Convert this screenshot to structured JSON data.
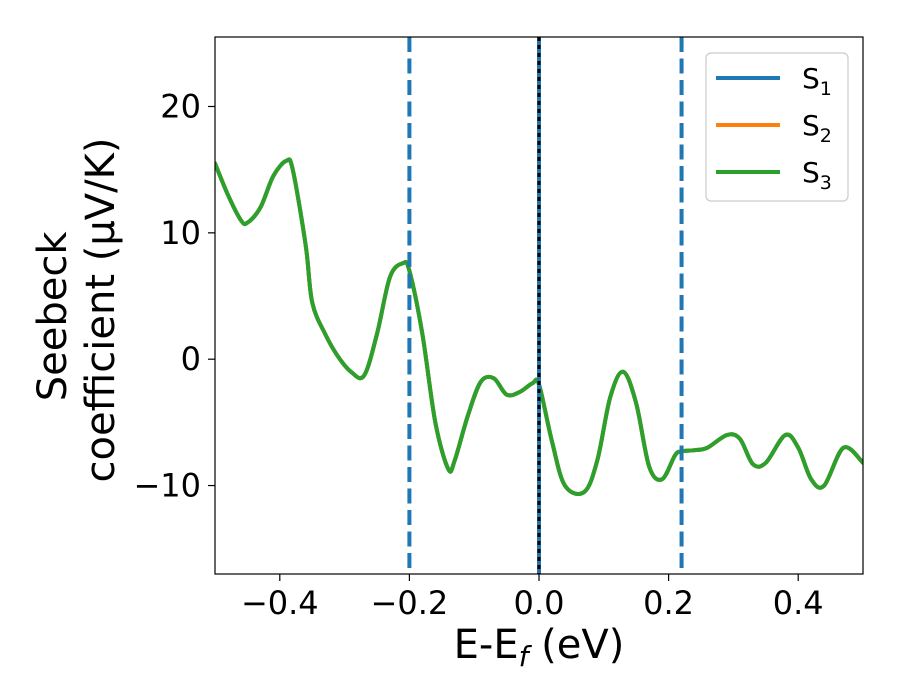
{
  "chart_data": {
    "type": "line",
    "xlabel": "E-E",
    "xlabel_sub": "f",
    "xlabel_unit": " (eV)",
    "ylabel_line1": "Seebeck",
    "ylabel_line2": "coefficient  (μV/K)",
    "xlim": [
      -0.5,
      0.5
    ],
    "ylim": [
      -17,
      25.5
    ],
    "x_ticks": [
      -0.4,
      -0.2,
      0.0,
      0.2,
      0.4
    ],
    "x_tick_labels": [
      "−0.4",
      "−0.2",
      "0.0",
      "0.2",
      "0.4"
    ],
    "y_ticks": [
      -10,
      0,
      10,
      20
    ],
    "y_tick_labels": [
      "−10",
      "0",
      "10",
      "20"
    ],
    "grid": false,
    "legend_position": "top-right",
    "series": [
      {
        "name": "S",
        "sub": "1",
        "color": "#1f77b4",
        "x": [
          -0.5,
          -0.48,
          -0.46,
          -0.45,
          -0.43,
          -0.41,
          -0.39,
          -0.38,
          -0.36,
          -0.35,
          -0.33,
          -0.31,
          -0.29,
          -0.27,
          -0.25,
          -0.23,
          -0.21,
          -0.2,
          -0.18,
          -0.16,
          -0.14,
          -0.13,
          -0.11,
          -0.09,
          -0.07,
          -0.05,
          -0.03,
          -0.01,
          0.0,
          0.02,
          0.04,
          0.07,
          0.09,
          0.11,
          0.13,
          0.15,
          0.17,
          0.19,
          0.21,
          0.22,
          0.24,
          0.26,
          0.29,
          0.31,
          0.33,
          0.35,
          0.38,
          0.4,
          0.42,
          0.44,
          0.47,
          0.5
        ],
        "y": [
          15.5,
          13.0,
          11.0,
          10.8,
          12.0,
          14.5,
          15.7,
          15.0,
          9.0,
          4.5,
          2.0,
          0.2,
          -1.0,
          -1.3,
          2.0,
          6.5,
          7.6,
          7.0,
          2.0,
          -5.0,
          -8.7,
          -8.0,
          -4.5,
          -1.8,
          -1.5,
          -2.8,
          -2.6,
          -1.9,
          -2.0,
          -6.5,
          -10.0,
          -10.5,
          -8.0,
          -3.0,
          -1.0,
          -3.5,
          -8.5,
          -9.5,
          -7.6,
          -7.3,
          -7.2,
          -7.0,
          -6.0,
          -6.3,
          -8.3,
          -8.2,
          -6.0,
          -7.0,
          -9.5,
          -10.0,
          -7.0,
          -8.2
        ]
      },
      {
        "name": "S",
        "sub": "2",
        "color": "#ff7f0e",
        "x": [
          -0.5,
          -0.48,
          -0.46,
          -0.45,
          -0.43,
          -0.41,
          -0.39,
          -0.38,
          -0.36,
          -0.35,
          -0.33,
          -0.31,
          -0.29,
          -0.27,
          -0.25,
          -0.23,
          -0.21,
          -0.2,
          -0.18,
          -0.16,
          -0.14,
          -0.13,
          -0.11,
          -0.09,
          -0.07,
          -0.05,
          -0.03,
          -0.01,
          0.0,
          0.02,
          0.04,
          0.07,
          0.09,
          0.11,
          0.13,
          0.15,
          0.17,
          0.19,
          0.21,
          0.22,
          0.24,
          0.26,
          0.29,
          0.31,
          0.33,
          0.35,
          0.38,
          0.4,
          0.42,
          0.44,
          0.47,
          0.5
        ],
        "y": [
          15.5,
          13.0,
          11.0,
          10.8,
          12.0,
          14.5,
          15.7,
          15.0,
          9.0,
          4.5,
          2.0,
          0.2,
          -1.0,
          -1.3,
          2.0,
          6.5,
          7.6,
          7.0,
          2.0,
          -5.0,
          -8.7,
          -8.0,
          -4.5,
          -1.8,
          -1.5,
          -2.8,
          -2.6,
          -1.9,
          -2.0,
          -6.5,
          -10.0,
          -10.5,
          -8.0,
          -3.0,
          -1.0,
          -3.5,
          -8.5,
          -9.5,
          -7.6,
          -7.3,
          -7.2,
          -7.0,
          -6.0,
          -6.3,
          -8.3,
          -8.2,
          -6.0,
          -7.0,
          -9.5,
          -10.0,
          -7.0,
          -8.2
        ]
      },
      {
        "name": "S",
        "sub": "3",
        "color": "#2ca02c",
        "x": [
          -0.5,
          -0.48,
          -0.46,
          -0.45,
          -0.43,
          -0.41,
          -0.39,
          -0.38,
          -0.36,
          -0.35,
          -0.33,
          -0.31,
          -0.29,
          -0.27,
          -0.25,
          -0.23,
          -0.21,
          -0.2,
          -0.18,
          -0.16,
          -0.14,
          -0.13,
          -0.11,
          -0.09,
          -0.07,
          -0.05,
          -0.03,
          -0.01,
          0.0,
          0.02,
          0.04,
          0.07,
          0.09,
          0.11,
          0.13,
          0.15,
          0.17,
          0.19,
          0.21,
          0.22,
          0.24,
          0.26,
          0.29,
          0.31,
          0.33,
          0.35,
          0.38,
          0.4,
          0.42,
          0.44,
          0.47,
          0.5
        ],
        "y": [
          15.5,
          13.0,
          11.0,
          10.8,
          12.0,
          14.5,
          15.7,
          15.0,
          9.0,
          4.5,
          2.0,
          0.2,
          -1.0,
          -1.3,
          2.0,
          6.5,
          7.6,
          7.0,
          2.0,
          -5.0,
          -8.7,
          -8.0,
          -4.5,
          -1.8,
          -1.5,
          -2.8,
          -2.6,
          -1.9,
          -2.0,
          -6.5,
          -10.0,
          -10.5,
          -8.0,
          -3.0,
          -1.0,
          -3.5,
          -8.5,
          -9.5,
          -7.6,
          -7.3,
          -7.2,
          -7.0,
          -6.0,
          -6.3,
          -8.3,
          -8.2,
          -6.0,
          -7.0,
          -9.5,
          -10.0,
          -7.0,
          -8.2
        ]
      }
    ],
    "vlines": [
      {
        "x": -0.2,
        "style": "dashed",
        "color": "#1f77b4"
      },
      {
        "x": 0.0,
        "style": "solid",
        "color": "#1f77b4"
      },
      {
        "x": 0.0,
        "style": "dotted",
        "color": "#000000"
      },
      {
        "x": 0.22,
        "style": "dashed",
        "color": "#1f77b4"
      }
    ]
  }
}
